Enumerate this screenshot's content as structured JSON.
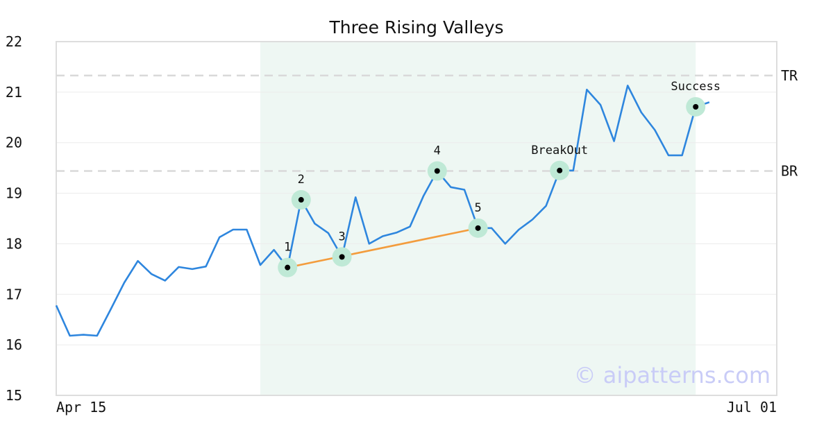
{
  "chart_data": {
    "type": "line",
    "title": "Three Rising Valleys",
    "ylim": [
      15,
      22
    ],
    "yticks": [
      15,
      16,
      17,
      18,
      19,
      20,
      21,
      22
    ],
    "xtick_labels": [
      "Apr 15",
      "Jul 01"
    ],
    "grid": true,
    "series": [
      {
        "values": [
          16.78,
          16.18,
          16.2,
          16.18,
          16.7,
          17.23,
          17.66,
          17.4,
          17.27,
          17.54,
          17.5,
          17.55,
          18.13,
          18.28,
          18.28,
          17.58,
          17.88,
          17.53,
          18.87,
          18.4,
          18.21,
          17.74,
          18.92,
          18.0,
          18.15,
          18.22,
          18.34,
          18.95,
          19.44,
          19.12,
          19.07,
          18.31,
          18.31,
          18.0,
          18.28,
          18.48,
          18.75,
          19.45,
          19.45,
          21.05,
          20.75,
          20.03,
          21.13,
          20.6,
          20.25,
          19.75,
          19.75,
          20.71,
          20.8
        ],
        "color": "#2e86de"
      }
    ],
    "trendline": {
      "from_index": 17,
      "to_index": 31,
      "color": "#f39c3d"
    },
    "horizontal_lines": [
      {
        "label": "TR",
        "value": 21.33
      },
      {
        "label": "BR",
        "value": 19.44
      }
    ],
    "highlight_region": {
      "from_index": 15,
      "to_index": 47,
      "color": "#eef7f3"
    },
    "annotations": [
      {
        "label": "1",
        "index": 17
      },
      {
        "label": "2",
        "index": 18
      },
      {
        "label": "3",
        "index": 21
      },
      {
        "label": "4",
        "index": 28
      },
      {
        "label": "5",
        "index": 31
      },
      {
        "label": "BreakOut",
        "index": 37
      },
      {
        "label": "Success",
        "index": 47
      }
    ]
  },
  "watermark": "© aipatterns.com",
  "colors": {
    "line": "#2e86de",
    "trendline": "#f39c3d",
    "marker_halo": "#bfe9d6",
    "marker_dot": "#000000",
    "dashed": "#d9d9d9",
    "watermark": "#c9ccf7"
  }
}
